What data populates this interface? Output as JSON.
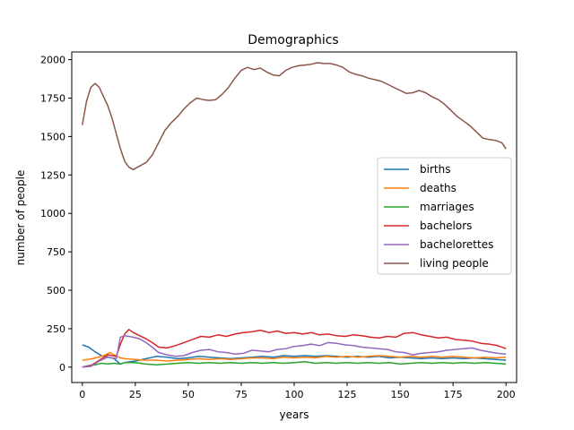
{
  "chart_data": {
    "type": "line",
    "title": "Demographics",
    "xlabel": "years",
    "ylabel": "number of people",
    "xlim": [
      -5,
      205
    ],
    "ylim": [
      -100,
      2050
    ],
    "xticks": [
      0,
      25,
      50,
      75,
      100,
      125,
      150,
      175,
      200
    ],
    "yticks": [
      0,
      250,
      500,
      750,
      1000,
      1250,
      1500,
      1750,
      2000
    ],
    "grid": false,
    "legend_position": "center-right",
    "series": [
      {
        "name": "births",
        "color": "#1f77b4",
        "points": [
          [
            0,
            145
          ],
          [
            3,
            130
          ],
          [
            6,
            100
          ],
          [
            9,
            75
          ],
          [
            12,
            65
          ],
          [
            15,
            55
          ],
          [
            18,
            20
          ],
          [
            20,
            30
          ],
          [
            25,
            40
          ],
          [
            30,
            55
          ],
          [
            35,
            70
          ],
          [
            40,
            65
          ],
          [
            45,
            55
          ],
          [
            50,
            60
          ],
          [
            55,
            70
          ],
          [
            60,
            65
          ],
          [
            65,
            60
          ],
          [
            70,
            55
          ],
          [
            75,
            60
          ],
          [
            80,
            65
          ],
          [
            85,
            70
          ],
          [
            90,
            65
          ],
          [
            95,
            75
          ],
          [
            100,
            70
          ],
          [
            105,
            75
          ],
          [
            110,
            70
          ],
          [
            115,
            75
          ],
          [
            120,
            70
          ],
          [
            125,
            65
          ],
          [
            130,
            70
          ],
          [
            135,
            65
          ],
          [
            140,
            70
          ],
          [
            145,
            60
          ],
          [
            150,
            65
          ],
          [
            155,
            60
          ],
          [
            160,
            55
          ],
          [
            165,
            60
          ],
          [
            170,
            55
          ],
          [
            175,
            60
          ],
          [
            180,
            55
          ],
          [
            185,
            60
          ],
          [
            190,
            55
          ],
          [
            195,
            50
          ],
          [
            200,
            45
          ]
        ]
      },
      {
        "name": "deaths",
        "color": "#ff7f0e",
        "points": [
          [
            0,
            45
          ],
          [
            5,
            55
          ],
          [
            10,
            75
          ],
          [
            13,
            95
          ],
          [
            15,
            80
          ],
          [
            18,
            60
          ],
          [
            20,
            55
          ],
          [
            25,
            50
          ],
          [
            30,
            45
          ],
          [
            35,
            45
          ],
          [
            40,
            40
          ],
          [
            45,
            45
          ],
          [
            50,
            50
          ],
          [
            55,
            55
          ],
          [
            60,
            50
          ],
          [
            65,
            55
          ],
          [
            70,
            50
          ],
          [
            75,
            55
          ],
          [
            80,
            60
          ],
          [
            85,
            60
          ],
          [
            90,
            55
          ],
          [
            95,
            65
          ],
          [
            100,
            60
          ],
          [
            105,
            65
          ],
          [
            110,
            60
          ],
          [
            115,
            70
          ],
          [
            120,
            65
          ],
          [
            125,
            70
          ],
          [
            130,
            65
          ],
          [
            135,
            70
          ],
          [
            140,
            75
          ],
          [
            145,
            70
          ],
          [
            150,
            65
          ],
          [
            155,
            70
          ],
          [
            160,
            65
          ],
          [
            165,
            70
          ],
          [
            170,
            65
          ],
          [
            175,
            70
          ],
          [
            180,
            65
          ],
          [
            185,
            60
          ],
          [
            190,
            65
          ],
          [
            195,
            60
          ],
          [
            200,
            65
          ]
        ]
      },
      {
        "name": "marriages",
        "color": "#2ca02c",
        "points": [
          [
            0,
            0
          ],
          [
            3,
            10
          ],
          [
            6,
            15
          ],
          [
            9,
            25
          ],
          [
            12,
            20
          ],
          [
            15,
            25
          ],
          [
            18,
            20
          ],
          [
            20,
            30
          ],
          [
            25,
            30
          ],
          [
            30,
            20
          ],
          [
            35,
            15
          ],
          [
            40,
            20
          ],
          [
            45,
            25
          ],
          [
            50,
            30
          ],
          [
            55,
            25
          ],
          [
            60,
            30
          ],
          [
            65,
            25
          ],
          [
            70,
            30
          ],
          [
            75,
            25
          ],
          [
            80,
            30
          ],
          [
            85,
            25
          ],
          [
            90,
            30
          ],
          [
            95,
            25
          ],
          [
            100,
            30
          ],
          [
            105,
            35
          ],
          [
            110,
            25
          ],
          [
            115,
            30
          ],
          [
            120,
            25
          ],
          [
            125,
            30
          ],
          [
            130,
            25
          ],
          [
            135,
            30
          ],
          [
            140,
            25
          ],
          [
            145,
            30
          ],
          [
            150,
            20
          ],
          [
            155,
            25
          ],
          [
            160,
            30
          ],
          [
            165,
            25
          ],
          [
            170,
            30
          ],
          [
            175,
            25
          ],
          [
            180,
            30
          ],
          [
            185,
            25
          ],
          [
            190,
            30
          ],
          [
            195,
            25
          ],
          [
            200,
            20
          ]
        ]
      },
      {
        "name": "bachelors",
        "color": "#d62728",
        "points": [
          [
            0,
            0
          ],
          [
            4,
            10
          ],
          [
            8,
            45
          ],
          [
            12,
            80
          ],
          [
            16,
            70
          ],
          [
            18,
            150
          ],
          [
            20,
            215
          ],
          [
            22,
            245
          ],
          [
            24,
            225
          ],
          [
            27,
            205
          ],
          [
            30,
            185
          ],
          [
            33,
            160
          ],
          [
            36,
            130
          ],
          [
            40,
            125
          ],
          [
            44,
            140
          ],
          [
            48,
            160
          ],
          [
            52,
            180
          ],
          [
            56,
            200
          ],
          [
            60,
            195
          ],
          [
            64,
            210
          ],
          [
            68,
            200
          ],
          [
            72,
            215
          ],
          [
            76,
            225
          ],
          [
            80,
            230
          ],
          [
            84,
            240
          ],
          [
            88,
            225
          ],
          [
            92,
            235
          ],
          [
            96,
            220
          ],
          [
            100,
            225
          ],
          [
            104,
            215
          ],
          [
            108,
            225
          ],
          [
            112,
            210
          ],
          [
            116,
            215
          ],
          [
            120,
            205
          ],
          [
            124,
            200
          ],
          [
            128,
            210
          ],
          [
            132,
            205
          ],
          [
            136,
            195
          ],
          [
            140,
            190
          ],
          [
            144,
            200
          ],
          [
            148,
            195
          ],
          [
            152,
            220
          ],
          [
            156,
            225
          ],
          [
            160,
            210
          ],
          [
            164,
            200
          ],
          [
            168,
            190
          ],
          [
            172,
            195
          ],
          [
            176,
            180
          ],
          [
            180,
            175
          ],
          [
            184,
            170
          ],
          [
            188,
            155
          ],
          [
            192,
            150
          ],
          [
            196,
            140
          ],
          [
            200,
            120
          ]
        ]
      },
      {
        "name": "bachelorettes",
        "color": "#9467bd",
        "points": [
          [
            0,
            0
          ],
          [
            4,
            5
          ],
          [
            8,
            40
          ],
          [
            12,
            65
          ],
          [
            16,
            55
          ],
          [
            18,
            195
          ],
          [
            20,
            205
          ],
          [
            22,
            200
          ],
          [
            24,
            195
          ],
          [
            27,
            185
          ],
          [
            30,
            160
          ],
          [
            33,
            130
          ],
          [
            36,
            95
          ],
          [
            40,
            80
          ],
          [
            44,
            70
          ],
          [
            48,
            75
          ],
          [
            52,
            95
          ],
          [
            56,
            110
          ],
          [
            60,
            115
          ],
          [
            64,
            100
          ],
          [
            68,
            95
          ],
          [
            72,
            85
          ],
          [
            76,
            90
          ],
          [
            80,
            110
          ],
          [
            84,
            105
          ],
          [
            88,
            100
          ],
          [
            92,
            115
          ],
          [
            96,
            120
          ],
          [
            100,
            135
          ],
          [
            104,
            140
          ],
          [
            108,
            150
          ],
          [
            112,
            140
          ],
          [
            116,
            160
          ],
          [
            120,
            155
          ],
          [
            124,
            145
          ],
          [
            128,
            140
          ],
          [
            132,
            130
          ],
          [
            136,
            125
          ],
          [
            140,
            120
          ],
          [
            144,
            115
          ],
          [
            148,
            100
          ],
          [
            152,
            95
          ],
          [
            156,
            80
          ],
          [
            160,
            90
          ],
          [
            164,
            95
          ],
          [
            168,
            100
          ],
          [
            172,
            110
          ],
          [
            176,
            115
          ],
          [
            180,
            120
          ],
          [
            184,
            125
          ],
          [
            188,
            110
          ],
          [
            192,
            100
          ],
          [
            196,
            90
          ],
          [
            200,
            85
          ]
        ]
      },
      {
        "name": "living people",
        "color": "#8c564b",
        "points": [
          [
            0,
            1575
          ],
          [
            2,
            1730
          ],
          [
            4,
            1820
          ],
          [
            6,
            1845
          ],
          [
            8,
            1820
          ],
          [
            10,
            1760
          ],
          [
            12,
            1700
          ],
          [
            14,
            1620
          ],
          [
            16,
            1520
          ],
          [
            18,
            1420
          ],
          [
            20,
            1340
          ],
          [
            22,
            1300
          ],
          [
            24,
            1285
          ],
          [
            26,
            1300
          ],
          [
            28,
            1315
          ],
          [
            30,
            1330
          ],
          [
            33,
            1380
          ],
          [
            36,
            1460
          ],
          [
            39,
            1540
          ],
          [
            42,
            1590
          ],
          [
            45,
            1630
          ],
          [
            48,
            1680
          ],
          [
            51,
            1720
          ],
          [
            54,
            1750
          ],
          [
            57,
            1740
          ],
          [
            60,
            1735
          ],
          [
            63,
            1740
          ],
          [
            66,
            1775
          ],
          [
            69,
            1820
          ],
          [
            72,
            1880
          ],
          [
            75,
            1930
          ],
          [
            78,
            1950
          ],
          [
            81,
            1935
          ],
          [
            84,
            1945
          ],
          [
            87,
            1920
          ],
          [
            90,
            1900
          ],
          [
            93,
            1895
          ],
          [
            96,
            1930
          ],
          [
            99,
            1950
          ],
          [
            102,
            1960
          ],
          [
            105,
            1965
          ],
          [
            108,
            1970
          ],
          [
            111,
            1980
          ],
          [
            114,
            1975
          ],
          [
            117,
            1975
          ],
          [
            120,
            1965
          ],
          [
            123,
            1950
          ],
          [
            126,
            1920
          ],
          [
            129,
            1905
          ],
          [
            132,
            1895
          ],
          [
            135,
            1880
          ],
          [
            138,
            1870
          ],
          [
            141,
            1860
          ],
          [
            144,
            1840
          ],
          [
            147,
            1820
          ],
          [
            150,
            1800
          ],
          [
            153,
            1780
          ],
          [
            156,
            1785
          ],
          [
            159,
            1800
          ],
          [
            162,
            1785
          ],
          [
            165,
            1760
          ],
          [
            168,
            1740
          ],
          [
            171,
            1710
          ],
          [
            174,
            1670
          ],
          [
            177,
            1630
          ],
          [
            180,
            1600
          ],
          [
            183,
            1570
          ],
          [
            186,
            1530
          ],
          [
            189,
            1490
          ],
          [
            192,
            1480
          ],
          [
            195,
            1475
          ],
          [
            198,
            1460
          ],
          [
            200,
            1420
          ]
        ]
      }
    ]
  }
}
